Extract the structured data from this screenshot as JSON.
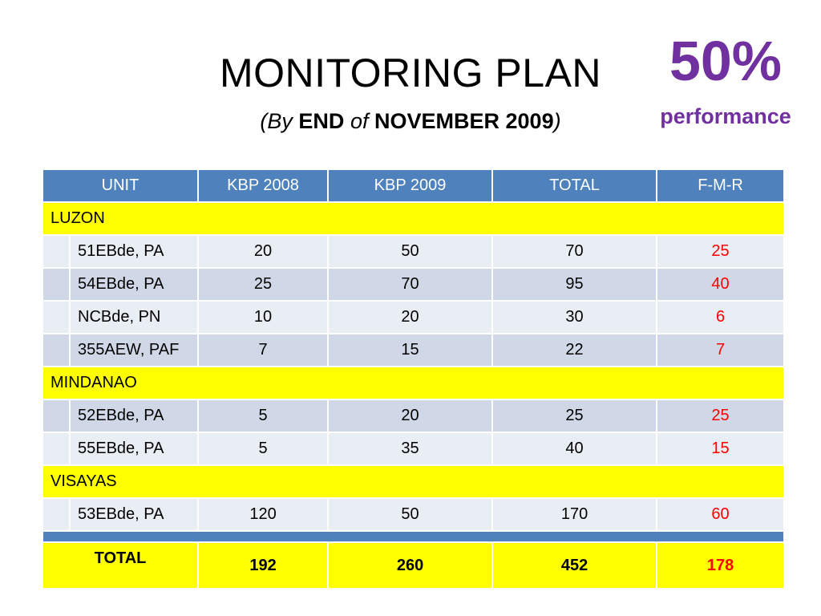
{
  "title": "MONITORING PLAN",
  "subtitle": {
    "open": "(",
    "by": "By",
    "end": "END",
    "of": "of",
    "month": "NOVEMBER 2009",
    "close": ")"
  },
  "performance": {
    "percent": "50%",
    "label": "performance"
  },
  "table": {
    "headers": [
      "UNIT",
      "KBP 2008",
      "KBP 2009",
      "TOTAL",
      "F-M-R"
    ],
    "regions": [
      {
        "name": "LUZON",
        "rows": [
          {
            "unit": "51EBde, PA",
            "kbp2008": "20",
            "kbp2009": "50",
            "total": "70",
            "fmr": "25"
          },
          {
            "unit": "54EBde, PA",
            "kbp2008": "25",
            "kbp2009": "70",
            "total": "95",
            "fmr": "40"
          },
          {
            "unit": "NCBde, PN",
            "kbp2008": "10",
            "kbp2009": "20",
            "total": "30",
            "fmr": "6"
          },
          {
            "unit": "355AEW, PAF",
            "kbp2008": "7",
            "kbp2009": "15",
            "total": "22",
            "fmr": "7"
          }
        ]
      },
      {
        "name": "MINDANAO",
        "rows": [
          {
            "unit": "52EBde, PA",
            "kbp2008": "5",
            "kbp2009": "20",
            "total": "25",
            "fmr": "25"
          },
          {
            "unit": "55EBde, PA",
            "kbp2008": "5",
            "kbp2009": "35",
            "total": "40",
            "fmr": "15"
          }
        ]
      },
      {
        "name": "VISAYAS",
        "rows": [
          {
            "unit": "53EBde, PA",
            "kbp2008": "120",
            "kbp2009": "50",
            "total": "170",
            "fmr": "60"
          }
        ]
      }
    ],
    "totals": {
      "label": "TOTAL",
      "kbp2008": "192",
      "kbp2009": "260",
      "total": "452",
      "fmr": "178"
    }
  },
  "colors": {
    "header_bg": "#4f81bd",
    "region_bg": "#ffff00",
    "row_light": "#e9edf4",
    "row_dark": "#d0d8e8",
    "fmr_text": "#ff0000",
    "performance_text": "#7030a0"
  }
}
